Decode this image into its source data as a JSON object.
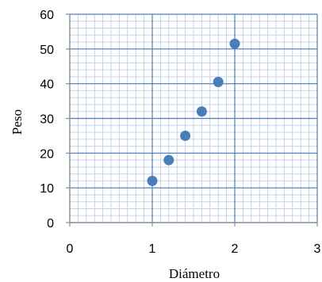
{
  "chart_data": {
    "type": "scatter",
    "title": "",
    "xlabel": "Diámetro",
    "ylabel": "Peso",
    "xlim": [
      0,
      3
    ],
    "ylim": [
      0,
      60
    ],
    "xticks": [
      "0",
      "1",
      "2",
      "3"
    ],
    "yticks": [
      "0",
      "10",
      "20",
      "30",
      "40",
      "50",
      "60"
    ],
    "grid": true,
    "legend": "none",
    "series": [
      {
        "x": [
          1.0,
          1.2,
          1.4,
          1.6,
          1.8,
          2.0
        ],
        "y": [
          12,
          18,
          25,
          32,
          40.5,
          51.5
        ]
      }
    ],
    "colors": {
      "marker": "#4a7ebb",
      "major_grid": "#4a7ebb",
      "minor_grid": "#c5d3e8",
      "axis": "#8c8c8c"
    }
  }
}
